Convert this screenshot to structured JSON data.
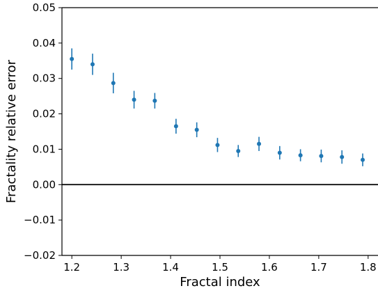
{
  "colors": {
    "series": "#1f77b4",
    "axis": "#000000",
    "zero_line": "#000000",
    "background": "#ffffff"
  },
  "chart_data": {
    "type": "scatter",
    "title": "",
    "xlabel": "Fractal index",
    "ylabel": "Fractality relative error",
    "xlim": [
      1.18,
      1.82
    ],
    "ylim": [
      -0.02,
      0.05
    ],
    "grid": false,
    "legend": "none",
    "x_ticks": [
      1.2,
      1.3,
      1.4,
      1.5,
      1.6,
      1.7,
      1.8
    ],
    "x_tick_labels": [
      "1.2",
      "1.3",
      "1.4",
      "1.5",
      "1.6",
      "1.7",
      "1.8"
    ],
    "y_ticks": [
      -0.02,
      -0.01,
      0.0,
      0.01,
      0.02,
      0.03,
      0.04,
      0.05
    ],
    "y_tick_labels": [
      "−0.02",
      "−0.01",
      "0.00",
      "0.01",
      "0.02",
      "0.03",
      "0.04",
      "0.05"
    ],
    "reference_line": {
      "y": 0.0
    },
    "series": [
      {
        "marker": "circle",
        "error_bars": true,
        "points": [
          {
            "x": 1.2,
            "y": 0.0355,
            "err": 0.003
          },
          {
            "x": 1.242,
            "y": 0.034,
            "err": 0.003
          },
          {
            "x": 1.284,
            "y": 0.0287,
            "err": 0.0029
          },
          {
            "x": 1.326,
            "y": 0.024,
            "err": 0.0025
          },
          {
            "x": 1.368,
            "y": 0.0237,
            "err": 0.0022
          },
          {
            "x": 1.411,
            "y": 0.0165,
            "err": 0.0021
          },
          {
            "x": 1.453,
            "y": 0.0155,
            "err": 0.0021
          },
          {
            "x": 1.495,
            "y": 0.0112,
            "err": 0.002
          },
          {
            "x": 1.537,
            "y": 0.0095,
            "err": 0.0017
          },
          {
            "x": 1.579,
            "y": 0.0115,
            "err": 0.002
          },
          {
            "x": 1.621,
            "y": 0.009,
            "err": 0.0019
          },
          {
            "x": 1.663,
            "y": 0.0083,
            "err": 0.0017
          },
          {
            "x": 1.705,
            "y": 0.0081,
            "err": 0.0018
          },
          {
            "x": 1.747,
            "y": 0.0078,
            "err": 0.0019
          },
          {
            "x": 1.789,
            "y": 0.007,
            "err": 0.0018
          }
        ]
      }
    ]
  }
}
